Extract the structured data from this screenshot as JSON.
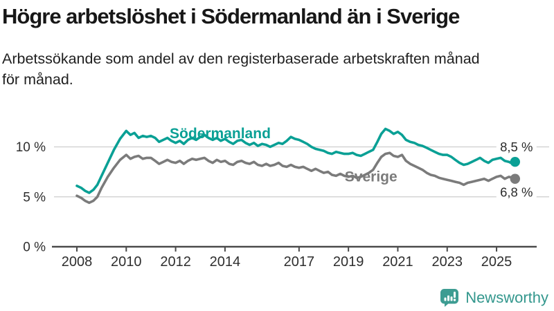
{
  "chart_data": {
    "type": "line",
    "title": "Högre arbetslöshet i Södermanland än i Sverige",
    "subtitle_lines": [
      "Arbetssökande som andel av den registerbaserade arbetskraften månad",
      "för månad."
    ],
    "x_unit": "year (monthly data)",
    "x_range": [
      2008,
      2025.75
    ],
    "ylim": [
      0,
      13
    ],
    "grid": "horizontal",
    "legend_position": "inline-labels",
    "yticks": [
      {
        "value": 0,
        "label": "0 %"
      },
      {
        "value": 5,
        "label": "5 %"
      },
      {
        "value": 10,
        "label": "10 %"
      }
    ],
    "xticks": [
      {
        "value": 2008,
        "label": "2008"
      },
      {
        "value": 2010,
        "label": "2010"
      },
      {
        "value": 2012,
        "label": "2012"
      },
      {
        "value": 2014,
        "label": "2014"
      },
      {
        "value": 2017,
        "label": "2017"
      },
      {
        "value": 2019,
        "label": "2019"
      },
      {
        "value": 2021,
        "label": "2021"
      },
      {
        "value": 2023,
        "label": "2023"
      },
      {
        "value": 2025,
        "label": "2025"
      }
    ],
    "series": [
      {
        "name": "Södermanland",
        "color": "#0aa095",
        "end_label": "8,5 %",
        "end_value": 8.5,
        "label_pos": {
          "x": 2011.76,
          "y": 10.85
        },
        "end_label_dy": -15,
        "points": [
          [
            2008,
            6.1
          ],
          [
            2008.17,
            5.9
          ],
          [
            2008.33,
            5.6
          ],
          [
            2008.5,
            5.4
          ],
          [
            2008.67,
            5.7
          ],
          [
            2008.83,
            6.2
          ],
          [
            2009,
            7.1
          ],
          [
            2009.25,
            8.4
          ],
          [
            2009.5,
            9.7
          ],
          [
            2009.75,
            10.8
          ],
          [
            2010,
            11.6
          ],
          [
            2010.17,
            11.2
          ],
          [
            2010.33,
            11.4
          ],
          [
            2010.5,
            10.9
          ],
          [
            2010.67,
            11.1
          ],
          [
            2010.83,
            11.0
          ],
          [
            2011,
            11.1
          ],
          [
            2011.17,
            10.9
          ],
          [
            2011.33,
            10.5
          ],
          [
            2011.5,
            10.7
          ],
          [
            2011.67,
            10.9
          ],
          [
            2011.83,
            10.6
          ],
          [
            2012,
            10.4
          ],
          [
            2012.17,
            10.6
          ],
          [
            2012.33,
            10.3
          ],
          [
            2012.5,
            10.7
          ],
          [
            2012.67,
            10.9
          ],
          [
            2012.83,
            10.7
          ],
          [
            2013,
            11.0
          ],
          [
            2013.17,
            11.2
          ],
          [
            2013.33,
            10.9
          ],
          [
            2013.5,
            10.7
          ],
          [
            2013.67,
            10.9
          ],
          [
            2013.83,
            10.6
          ],
          [
            2014,
            10.8
          ],
          [
            2014.17,
            10.5
          ],
          [
            2014.33,
            10.3
          ],
          [
            2014.5,
            10.6
          ],
          [
            2014.67,
            10.7
          ],
          [
            2014.83,
            10.4
          ],
          [
            2015,
            10.2
          ],
          [
            2015.17,
            10.4
          ],
          [
            2015.33,
            10.1
          ],
          [
            2015.5,
            10.3
          ],
          [
            2015.67,
            10.2
          ],
          [
            2015.83,
            10.0
          ],
          [
            2016,
            10.2
          ],
          [
            2016.17,
            10.4
          ],
          [
            2016.33,
            10.3
          ],
          [
            2016.5,
            10.6
          ],
          [
            2016.67,
            11.0
          ],
          [
            2016.83,
            10.8
          ],
          [
            2017,
            10.7
          ],
          [
            2017.17,
            10.5
          ],
          [
            2017.33,
            10.3
          ],
          [
            2017.5,
            10.0
          ],
          [
            2017.67,
            9.8
          ],
          [
            2017.83,
            9.7
          ],
          [
            2018,
            9.6
          ],
          [
            2018.17,
            9.4
          ],
          [
            2018.33,
            9.3
          ],
          [
            2018.5,
            9.5
          ],
          [
            2018.67,
            9.4
          ],
          [
            2018.83,
            9.3
          ],
          [
            2019,
            9.3
          ],
          [
            2019.17,
            9.4
          ],
          [
            2019.33,
            9.2
          ],
          [
            2019.5,
            9.1
          ],
          [
            2019.67,
            9.3
          ],
          [
            2019.83,
            9.5
          ],
          [
            2020,
            9.7
          ],
          [
            2020.17,
            10.5
          ],
          [
            2020.33,
            11.3
          ],
          [
            2020.5,
            11.8
          ],
          [
            2020.67,
            11.6
          ],
          [
            2020.83,
            11.3
          ],
          [
            2021,
            11.5
          ],
          [
            2021.17,
            11.2
          ],
          [
            2021.33,
            10.7
          ],
          [
            2021.5,
            10.5
          ],
          [
            2021.67,
            10.4
          ],
          [
            2021.83,
            10.2
          ],
          [
            2022,
            10.1
          ],
          [
            2022.17,
            9.9
          ],
          [
            2022.33,
            9.7
          ],
          [
            2022.5,
            9.5
          ],
          [
            2022.67,
            9.3
          ],
          [
            2022.83,
            9.2
          ],
          [
            2023,
            9.2
          ],
          [
            2023.17,
            9.0
          ],
          [
            2023.33,
            8.7
          ],
          [
            2023.5,
            8.4
          ],
          [
            2023.67,
            8.2
          ],
          [
            2023.83,
            8.3
          ],
          [
            2024,
            8.5
          ],
          [
            2024.17,
            8.7
          ],
          [
            2024.33,
            8.9
          ],
          [
            2024.5,
            8.6
          ],
          [
            2024.67,
            8.4
          ],
          [
            2024.83,
            8.7
          ],
          [
            2025,
            8.8
          ],
          [
            2025.17,
            8.9
          ],
          [
            2025.33,
            8.6
          ],
          [
            2025.5,
            8.5
          ],
          [
            2025.67,
            8.3
          ],
          [
            2025.75,
            8.5
          ]
        ]
      },
      {
        "name": "Sverige",
        "color": "#7b7b7b",
        "end_label": "6,8 %",
        "end_value": 6.8,
        "label_pos": {
          "x": 2018.85,
          "y": 6.55
        },
        "end_label_dy": 26,
        "points": [
          [
            2008,
            5.1
          ],
          [
            2008.17,
            4.9
          ],
          [
            2008.33,
            4.6
          ],
          [
            2008.5,
            4.4
          ],
          [
            2008.67,
            4.6
          ],
          [
            2008.83,
            5.0
          ],
          [
            2009,
            5.9
          ],
          [
            2009.25,
            7.0
          ],
          [
            2009.5,
            7.9
          ],
          [
            2009.75,
            8.7
          ],
          [
            2010,
            9.2
          ],
          [
            2010.17,
            8.8
          ],
          [
            2010.33,
            9.0
          ],
          [
            2010.5,
            9.1
          ],
          [
            2010.67,
            8.8
          ],
          [
            2010.83,
            8.9
          ],
          [
            2011,
            8.9
          ],
          [
            2011.17,
            8.6
          ],
          [
            2011.33,
            8.3
          ],
          [
            2011.5,
            8.5
          ],
          [
            2011.67,
            8.7
          ],
          [
            2011.83,
            8.5
          ],
          [
            2012,
            8.4
          ],
          [
            2012.17,
            8.6
          ],
          [
            2012.33,
            8.3
          ],
          [
            2012.5,
            8.6
          ],
          [
            2012.67,
            8.8
          ],
          [
            2012.83,
            8.7
          ],
          [
            2013,
            8.8
          ],
          [
            2013.17,
            8.9
          ],
          [
            2013.33,
            8.6
          ],
          [
            2013.5,
            8.4
          ],
          [
            2013.67,
            8.7
          ],
          [
            2013.83,
            8.5
          ],
          [
            2014,
            8.6
          ],
          [
            2014.17,
            8.3
          ],
          [
            2014.33,
            8.2
          ],
          [
            2014.5,
            8.5
          ],
          [
            2014.67,
            8.6
          ],
          [
            2014.83,
            8.4
          ],
          [
            2015,
            8.3
          ],
          [
            2015.17,
            8.5
          ],
          [
            2015.33,
            8.2
          ],
          [
            2015.5,
            8.1
          ],
          [
            2015.67,
            8.3
          ],
          [
            2015.83,
            8.1
          ],
          [
            2016,
            8.2
          ],
          [
            2016.17,
            8.4
          ],
          [
            2016.33,
            8.1
          ],
          [
            2016.5,
            8.0
          ],
          [
            2016.67,
            8.2
          ],
          [
            2016.83,
            8.0
          ],
          [
            2017,
            7.9
          ],
          [
            2017.17,
            8.0
          ],
          [
            2017.33,
            7.8
          ],
          [
            2017.5,
            7.6
          ],
          [
            2017.67,
            7.8
          ],
          [
            2017.83,
            7.6
          ],
          [
            2018,
            7.4
          ],
          [
            2018.17,
            7.5
          ],
          [
            2018.33,
            7.2
          ],
          [
            2018.5,
            7.1
          ],
          [
            2018.67,
            7.3
          ],
          [
            2018.83,
            7.1
          ],
          [
            2019,
            7.0
          ],
          [
            2019.17,
            7.1
          ],
          [
            2019.33,
            6.9
          ],
          [
            2019.5,
            7.0
          ],
          [
            2019.67,
            7.2
          ],
          [
            2019.83,
            7.4
          ],
          [
            2020,
            7.7
          ],
          [
            2020.17,
            8.4
          ],
          [
            2020.33,
            9.0
          ],
          [
            2020.5,
            9.3
          ],
          [
            2020.67,
            9.4
          ],
          [
            2020.83,
            9.1
          ],
          [
            2021,
            9.0
          ],
          [
            2021.17,
            9.2
          ],
          [
            2021.33,
            8.6
          ],
          [
            2021.5,
            8.3
          ],
          [
            2021.67,
            8.1
          ],
          [
            2021.83,
            7.9
          ],
          [
            2022,
            7.7
          ],
          [
            2022.17,
            7.4
          ],
          [
            2022.33,
            7.2
          ],
          [
            2022.5,
            7.1
          ],
          [
            2022.67,
            6.9
          ],
          [
            2022.83,
            6.8
          ],
          [
            2023,
            6.7
          ],
          [
            2023.17,
            6.6
          ],
          [
            2023.33,
            6.5
          ],
          [
            2023.5,
            6.4
          ],
          [
            2023.67,
            6.2
          ],
          [
            2023.83,
            6.4
          ],
          [
            2024,
            6.5
          ],
          [
            2024.17,
            6.6
          ],
          [
            2024.33,
            6.7
          ],
          [
            2024.5,
            6.8
          ],
          [
            2024.67,
            6.6
          ],
          [
            2024.83,
            6.8
          ],
          [
            2025,
            7.0
          ],
          [
            2025.17,
            7.1
          ],
          [
            2025.33,
            6.8
          ],
          [
            2025.5,
            7.0
          ],
          [
            2025.67,
            6.9
          ],
          [
            2025.75,
            6.8
          ]
        ]
      }
    ]
  },
  "footer": {
    "brand": "Newsworthy",
    "brand_color": "#33978d",
    "logo_icon": "bar-chart-speech-bubble-icon"
  }
}
